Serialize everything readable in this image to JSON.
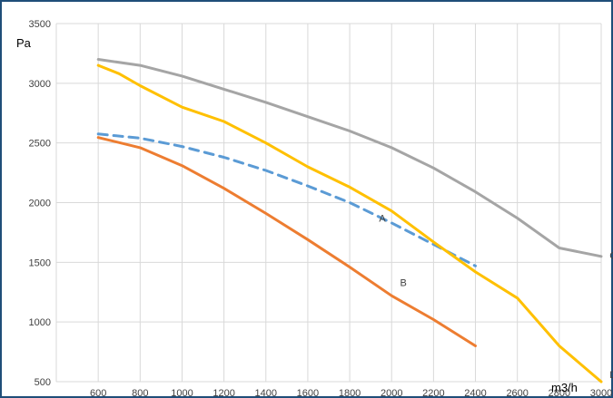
{
  "chart_data": {
    "type": "line",
    "title": "",
    "ylabel": "Pa",
    "xlabel": "m3/h",
    "xlim": [
      600,
      3000
    ],
    "ylim": [
      500,
      3500
    ],
    "x_ticks": [
      600,
      800,
      1000,
      1200,
      1400,
      1600,
      1800,
      2000,
      2200,
      2400,
      2600,
      2800,
      3000
    ],
    "y_ticks": [
      500,
      1000,
      1500,
      2000,
      2500,
      3000,
      3500
    ],
    "grid": true,
    "legend": "none",
    "series": [
      {
        "name": "A",
        "color": "#5b9bd5",
        "dash": true,
        "x": [
          600,
          800,
          1000,
          1200,
          1400,
          1600,
          1800,
          2000,
          2200,
          2400
        ],
        "y": [
          2575,
          2540,
          2470,
          2380,
          2270,
          2140,
          2000,
          1830,
          1650,
          1470
        ]
      },
      {
        "name": "B",
        "color": "#ed7d31",
        "dash": false,
        "x": [
          600,
          800,
          1000,
          1200,
          1400,
          1600,
          1800,
          2000,
          2200,
          2400
        ],
        "y": [
          2545,
          2460,
          2310,
          2120,
          1910,
          1690,
          1460,
          1220,
          1020,
          800
        ]
      },
      {
        "name": "C",
        "color": "#a5a5a5",
        "dash": false,
        "x": [
          600,
          800,
          1000,
          1200,
          1400,
          1600,
          1800,
          2000,
          2200,
          2400,
          2600,
          2800,
          3000
        ],
        "y": [
          3200,
          3150,
          3060,
          2950,
          2840,
          2720,
          2600,
          2460,
          2290,
          2090,
          1870,
          1620,
          1550
        ]
      },
      {
        "name": "D",
        "color": "#ffc000",
        "dash": false,
        "x": [
          600,
          700,
          800,
          1000,
          1200,
          1400,
          1600,
          1800,
          2000,
          2200,
          2400,
          2600,
          2800,
          3000
        ],
        "y": [
          3150,
          3080,
          2980,
          2800,
          2680,
          2500,
          2300,
          2130,
          1930,
          1670,
          1420,
          1200,
          800,
          500
        ]
      }
    ]
  }
}
